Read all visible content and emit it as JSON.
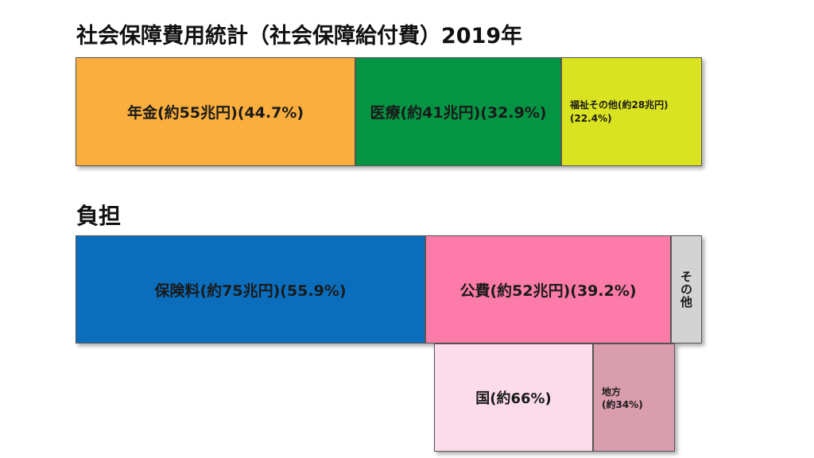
{
  "chart_data": {
    "type": "bar",
    "title": "社会保障費用統計（社会保障給付費）2019年",
    "burden_title": "負担",
    "benefits": [
      {
        "name": "年金",
        "label": "年金(約55兆円)(44.7%)",
        "amount_trillion_yen": 55,
        "percent": 44.7,
        "color": "#F9AE3D"
      },
      {
        "name": "医療",
        "label": "医療(約41兆円)(32.9%)",
        "amount_trillion_yen": 41,
        "percent": 32.9,
        "color": "#059443"
      },
      {
        "name": "福祉その他",
        "label": "福祉その他(約28兆円)\n(22.4%)",
        "amount_trillion_yen": 28,
        "percent": 22.4,
        "color": "#DAE31F"
      }
    ],
    "burden": [
      {
        "name": "保険料",
        "label": "保険料(約75兆円)(55.9%)",
        "amount_trillion_yen": 75,
        "percent": 55.9,
        "color": "#0A6EBD"
      },
      {
        "name": "公費",
        "label": "公費(約52兆円)(39.2%)",
        "amount_trillion_yen": 52,
        "percent": 39.2,
        "color": "#FC7BA9"
      },
      {
        "name": "その他",
        "label": "その他",
        "percent": 4.9,
        "color": "#D3D3D3"
      }
    ],
    "public_breakdown": [
      {
        "name": "国",
        "label": "国(約66%)",
        "percent": 66,
        "color": "#FCDCEB"
      },
      {
        "name": "地方",
        "label": "地方\n(約34%)",
        "percent": 34,
        "color": "#D99DAE"
      }
    ]
  }
}
